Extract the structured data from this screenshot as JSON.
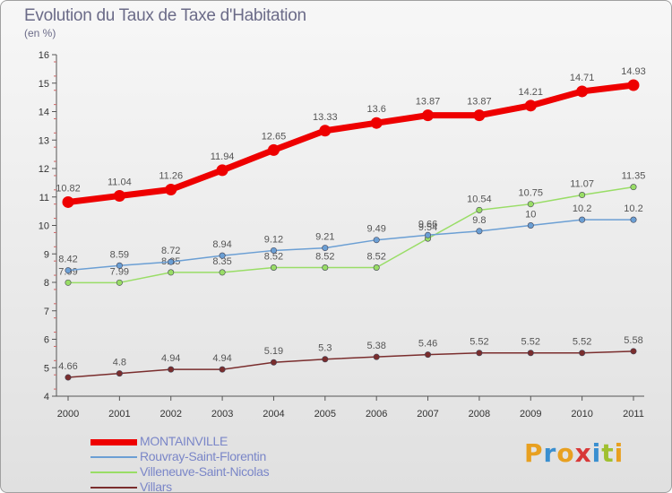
{
  "header": {
    "title": "Evolution du Taux de Taxe d'Habitation",
    "unit": "(en %)"
  },
  "chart_data": {
    "type": "line",
    "title": "Evolution du Taux de Taxe d'Habitation",
    "ylabel": "(en %)",
    "x": [
      "2000",
      "2001",
      "2002",
      "2003",
      "2004",
      "2005",
      "2006",
      "2007",
      "2008",
      "2009",
      "2010",
      "2011"
    ],
    "ylim": [
      4,
      16
    ],
    "yticks": [
      4,
      5,
      6,
      7,
      8,
      9,
      10,
      11,
      12,
      13,
      14,
      15,
      16
    ],
    "grid": false,
    "legend_position": "bottom",
    "series": [
      {
        "name": "MONTAINVILLE",
        "color": "#ee0000",
        "values": [
          10.82,
          11.04,
          11.26,
          11.94,
          12.65,
          13.33,
          13.6,
          13.87,
          13.87,
          14.21,
          14.71,
          14.93
        ],
        "labels": [
          "10.82",
          "11.04",
          "11.26",
          "11.94",
          "12.65",
          "13.33",
          "13.6",
          "13.87",
          "13.87",
          "14.21",
          "14.71",
          "14.93"
        ]
      },
      {
        "name": "Rouvray-Saint-Florentin",
        "color": "#6b9fd4",
        "values": [
          8.42,
          8.59,
          8.72,
          8.94,
          9.12,
          9.21,
          9.49,
          9.66,
          9.8,
          10,
          10.2,
          10.2
        ],
        "labels": [
          "8.42",
          "8.59",
          "8.72",
          "8.94",
          "9.12",
          "9.21",
          "9.49",
          "9.66",
          "9.8",
          "10",
          "10.2",
          "10.2"
        ]
      },
      {
        "name": "Villeneuve-Saint-Nicolas",
        "color": "#99dd66",
        "values": [
          7.99,
          7.99,
          8.35,
          8.35,
          8.52,
          8.52,
          8.52,
          9.54,
          10.54,
          10.75,
          11.07,
          11.35
        ],
        "labels": [
          "7.99",
          "7.99",
          "8.35",
          "8.35",
          "8.52",
          "8.52",
          "8.52",
          "9.54",
          "10.54",
          "10.75",
          "11.07",
          "11.35"
        ]
      },
      {
        "name": "Villars",
        "color": "#7a2d2d",
        "values": [
          4.66,
          4.8,
          4.94,
          4.94,
          5.19,
          5.3,
          5.38,
          5.46,
          5.52,
          5.52,
          5.52,
          5.58
        ],
        "labels": [
          "4.66",
          "4.8",
          "4.94",
          "4.94",
          "5.19",
          "5.3",
          "5.38",
          "5.46",
          "5.52",
          "5.52",
          "5.52",
          "5.58"
        ]
      }
    ]
  },
  "logo": {
    "text": "Proxiti",
    "colors": [
      "#e8a020",
      "#3a8fd0",
      "#e8a020",
      "#d83838",
      "#3a8fd0",
      "#a0c030",
      "#e8a020"
    ]
  }
}
